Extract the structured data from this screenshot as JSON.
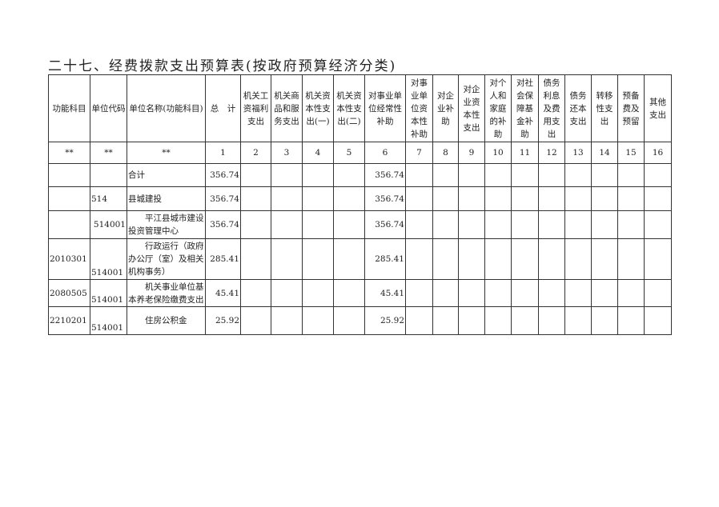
{
  "title": "二十七、经费拨款支出预算表(按政府预算经济分类)",
  "headers": [
    "功能科目",
    "单位代码",
    "单位名称(功能科目)",
    "总　计",
    "机关工\n资福利\n支出",
    "机关商\n品和服\n务支出",
    "机关资\n本性支\n出(一)",
    "机关资\n本性支\n出(二)",
    "对事业单\n位经常性\n补助",
    "对事\n业单\n位资\n本性\n补助",
    "对企\n业补\n助",
    "对企\n业资\n本性\n支出",
    "对个\n人和\n家庭\n的补\n助",
    "对社\n会保\n障基\n金补\n助",
    "债务\n利息\n及费\n用支\n出",
    "债务\n还本\n支出",
    "转移\n性支\n出",
    "预备\n费及\n预留",
    "其他\n支出"
  ],
  "numbers": [
    "**",
    "**",
    "**",
    "1",
    "2",
    "3",
    "4",
    "5",
    "6",
    "7",
    "8",
    "9",
    "10",
    "11",
    "12",
    "13",
    "14",
    "15",
    "16"
  ],
  "rows": [
    {
      "func": "",
      "unit": "",
      "name": "合计",
      "total": "356.74",
      "c6": "356.74"
    },
    {
      "func": "",
      "unit": "514",
      "name": "县城建投",
      "total": "356.74",
      "c6": "356.74"
    },
    {
      "func": "",
      "unit": "514001",
      "name": "平江县城市建设投资管理中心",
      "total": "356.74",
      "c6": "356.74"
    },
    {
      "func": "2010301",
      "unit": "514001",
      "name": "行政运行（政府办公厅（室）及相关机构事务）",
      "total": "285.41",
      "c6": "285.41"
    },
    {
      "func": "2080505",
      "unit": "514001",
      "name": "机关事业单位基本养老保险缴费支出",
      "total": "45.41",
      "c6": "45.41"
    },
    {
      "func": "2210201",
      "unit": "514001",
      "name": "住房公积金",
      "total": "25.92",
      "c6": "25.92"
    }
  ]
}
